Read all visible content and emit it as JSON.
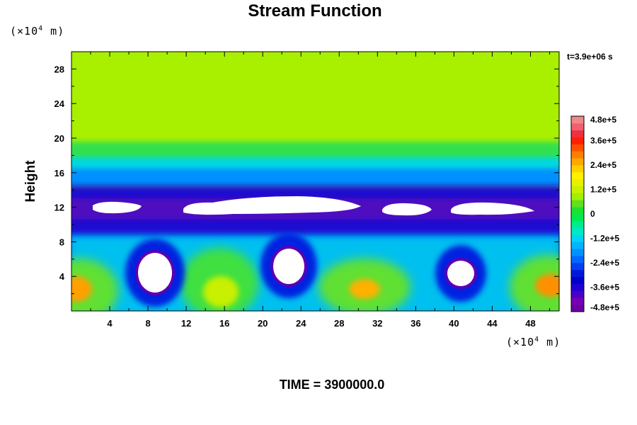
{
  "chart_data": {
    "type": "heatmap",
    "title": "Stream Function",
    "ylabel": "Height",
    "x_unit": "(×10",
    "x_unit_exp": "4",
    "x_unit_tail": " m)",
    "y_unit": "(×10",
    "y_unit_exp": "4",
    "y_unit_tail": " m)",
    "time_stamp": "t=3.9e+06 s",
    "footer": "TIME = 3900000.0",
    "xlim": [
      0,
      51
    ],
    "ylim": [
      0,
      30
    ],
    "x_ticks": [
      "4",
      "8",
      "12",
      "16",
      "20",
      "24",
      "28",
      "32",
      "36",
      "40",
      "44",
      "48"
    ],
    "x_tick_values": [
      4,
      8,
      12,
      16,
      20,
      24,
      28,
      32,
      36,
      40,
      44,
      48
    ],
    "y_ticks": [
      "4",
      "8",
      "12",
      "16",
      "20",
      "24",
      "28"
    ],
    "y_tick_values": [
      4,
      8,
      12,
      16,
      20,
      24,
      28
    ],
    "colorbar": {
      "range": [
        -480000,
        480000
      ],
      "labels": [
        "4.8e+5",
        "3.6e+5",
        "2.4e+5",
        "1.2e+5",
        "0",
        "-1.2e+5",
        "-2.4e+5",
        "-3.6e+5",
        "-4.8e+5"
      ],
      "label_values": [
        480000,
        360000,
        240000,
        120000,
        0,
        -120000,
        -240000,
        -360000,
        -480000
      ],
      "colors": [
        "#6a00a0",
        "#7800b4",
        "#4a00c8",
        "#2000d2",
        "#0000cc",
        "#0018dc",
        "#0040f0",
        "#0068ff",
        "#0090ff",
        "#00b4ff",
        "#00d4f0",
        "#00e8c8",
        "#00ec90",
        "#00ea50",
        "#20e030",
        "#60e020",
        "#a0f000",
        "#c8f000",
        "#e8f000",
        "#fff000",
        "#ffd000",
        "#ffa800",
        "#ff8000",
        "#ff5000",
        "#ff2000",
        "#f03040",
        "#f06070",
        "#f08888"
      ]
    },
    "features": {
      "upper_layer_value": 80000,
      "upper_layer_y_from": 19.5,
      "negative_band_y": [
        9.5,
        15
      ],
      "saturated_minima_y": 12,
      "lower_cells_centers_x": [
        8.5,
        22.3,
        40.5
      ],
      "lower_cells_y": 4.5,
      "positive_maxima_x": [
        1.5,
        15.5,
        31,
        50
      ],
      "positive_maxima_y": 2.5
    }
  }
}
